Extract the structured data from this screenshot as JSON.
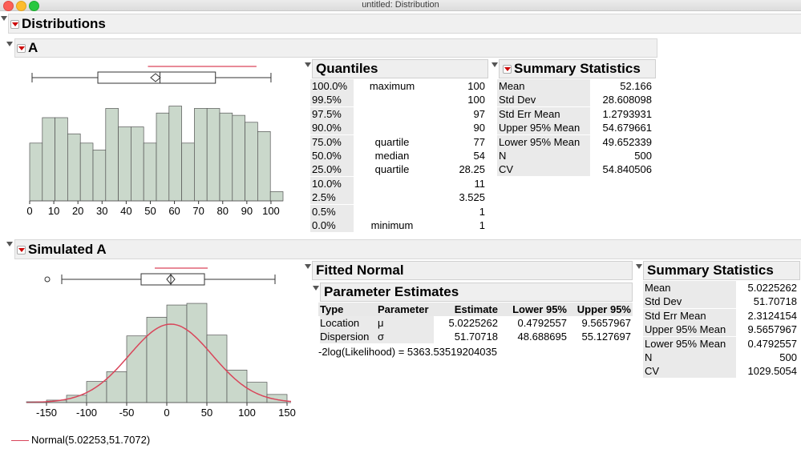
{
  "window": {
    "title": "untitled: Distribution"
  },
  "distributions": {
    "title": "Distributions"
  },
  "var_a": {
    "title": "A",
    "axis_ticks": [
      "0",
      "10",
      "20",
      "30",
      "40",
      "50",
      "60",
      "70",
      "80",
      "90",
      "100"
    ],
    "histogram_counts": [
      25,
      36,
      36,
      29,
      25,
      22,
      40,
      32,
      32,
      25,
      38,
      41,
      25,
      40,
      40,
      38,
      37,
      34,
      30,
      4
    ],
    "quantiles": {
      "title": "Quantiles",
      "rows": [
        {
          "pct": "100.0%",
          "label": "maximum",
          "value": "100"
        },
        {
          "pct": "99.5%",
          "label": "",
          "value": "100"
        },
        {
          "pct": "97.5%",
          "label": "",
          "value": "97"
        },
        {
          "pct": "90.0%",
          "label": "",
          "value": "90"
        },
        {
          "pct": "75.0%",
          "label": "quartile",
          "value": "77"
        },
        {
          "pct": "50.0%",
          "label": "median",
          "value": "54"
        },
        {
          "pct": "25.0%",
          "label": "quartile",
          "value": "28.25"
        },
        {
          "pct": "10.0%",
          "label": "",
          "value": "11"
        },
        {
          "pct": "2.5%",
          "label": "",
          "value": "3.525"
        },
        {
          "pct": "0.5%",
          "label": "",
          "value": "1"
        },
        {
          "pct": "0.0%",
          "label": "minimum",
          "value": "1"
        }
      ]
    },
    "summary": {
      "title": "Summary Statistics",
      "rows": [
        {
          "label": "Mean",
          "value": "52.166"
        },
        {
          "label": "Std Dev",
          "value": "28.608098"
        },
        {
          "label": "Std Err Mean",
          "value": "1.2793931"
        },
        {
          "label": "Upper 95% Mean",
          "value": "54.679661"
        },
        {
          "label": "Lower 95% Mean",
          "value": "49.652339"
        },
        {
          "label": "N",
          "value": "500"
        },
        {
          "label": "CV",
          "value": "54.840506"
        }
      ]
    }
  },
  "var_sim": {
    "title": "Simulated A",
    "axis_ticks": [
      "-150",
      "-100",
      "-50",
      "0",
      "50",
      "100",
      "150"
    ],
    "histogram_counts": [
      1,
      3,
      9,
      26,
      38,
      82,
      105,
      120,
      122,
      83,
      40,
      25,
      10
    ],
    "legend": "Normal(5.02253,51.7072)",
    "fitted": {
      "title": "Fitted Normal",
      "param_title": "Parameter Estimates",
      "headers": [
        "Type",
        "Parameter",
        "Estimate",
        "Lower 95%",
        "Upper 95%"
      ],
      "rows": [
        [
          "Location",
          "μ",
          "5.0225262",
          "0.4792557",
          "9.5657967"
        ],
        [
          "Dispersion",
          "σ",
          "51.70718",
          "48.688695",
          "55.127697"
        ]
      ],
      "loglik": "-2log(Likelihood) = 5363.53519204035"
    },
    "summary": {
      "title": "Summary Statistics",
      "rows": [
        {
          "label": "Mean",
          "value": "5.0225262"
        },
        {
          "label": "Std Dev",
          "value": "51.70718"
        },
        {
          "label": "Std Err Mean",
          "value": "2.3124154"
        },
        {
          "label": "Upper 95% Mean",
          "value": "9.5657967"
        },
        {
          "label": "Lower 95% Mean",
          "value": "0.4792557"
        },
        {
          "label": "N",
          "value": "500"
        },
        {
          "label": "CV",
          "value": "1029.5054"
        }
      ]
    }
  },
  "colors": {
    "bar_fill": "#cad8cb",
    "bar_stroke": "#555555",
    "normal_curve": "#d9455a",
    "header_bg": "#f0f0f0"
  }
}
